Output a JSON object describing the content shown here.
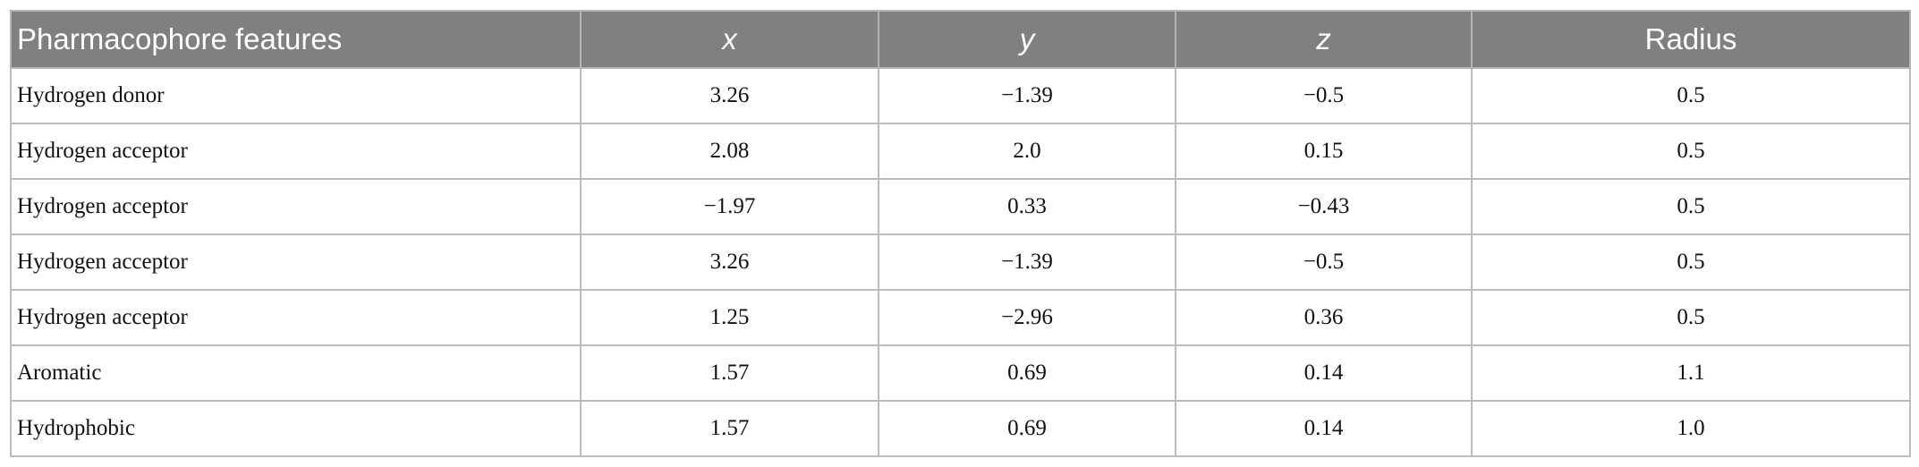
{
  "table": {
    "header": [
      "Pharmacophore features",
      "x",
      "y",
      "z",
      "Radius"
    ],
    "rows": [
      [
        "Hydrogen donor",
        "3.26",
        "−1.39",
        "−0.5",
        "0.5"
      ],
      [
        "Hydrogen acceptor",
        "2.08",
        "2.0",
        "0.15",
        "0.5"
      ],
      [
        "Hydrogen acceptor",
        "−1.97",
        "0.33",
        "−0.43",
        "0.5"
      ],
      [
        "Hydrogen acceptor",
        "3.26",
        "−1.39",
        "−0.5",
        "0.5"
      ],
      [
        "Hydrogen acceptor",
        "1.25",
        "−2.96",
        "0.36",
        "0.5"
      ],
      [
        "Aromatic",
        "1.57",
        "0.69",
        "0.14",
        "1.1"
      ],
      [
        "Hydrophobic",
        "1.57",
        "0.69",
        "0.14",
        "1.0"
      ]
    ]
  }
}
